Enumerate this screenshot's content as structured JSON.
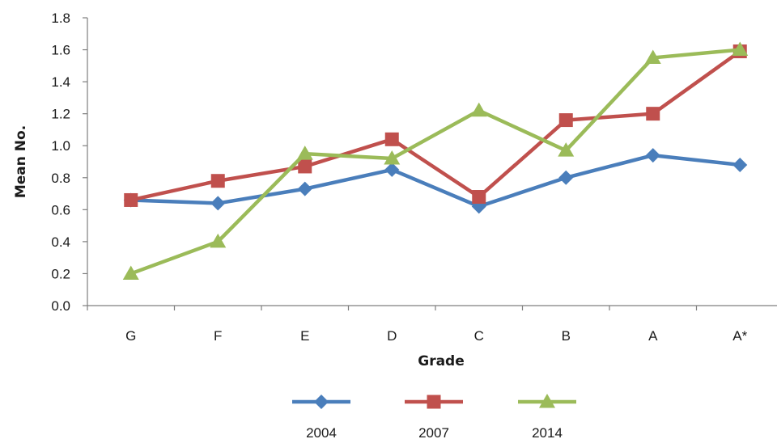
{
  "chart_data": {
    "type": "line",
    "title": "",
    "xlabel": "Grade",
    "ylabel": "Mean No.",
    "categories": [
      "G",
      "F",
      "E",
      "D",
      "C",
      "B",
      "A",
      "A*"
    ],
    "ylim": [
      0,
      1.8
    ],
    "yticks": [
      "0.0",
      "0.2",
      "0.4",
      "0.6",
      "0.8",
      "1.0",
      "1.2",
      "1.4",
      "1.6",
      "1.8"
    ],
    "grid": false,
    "legend_position": "bottom",
    "series": [
      {
        "name": "2004",
        "color": "#4a7ebb",
        "marker": "diamond",
        "values": [
          0.66,
          0.64,
          0.73,
          0.85,
          0.62,
          0.8,
          0.94,
          0.88
        ]
      },
      {
        "name": "2007",
        "color": "#c0504d",
        "marker": "square",
        "values": [
          0.66,
          0.78,
          0.87,
          1.04,
          0.68,
          1.16,
          1.2,
          1.59
        ]
      },
      {
        "name": "2014",
        "color": "#9bbb59",
        "marker": "triangle",
        "values": [
          0.2,
          0.4,
          0.95,
          0.92,
          1.22,
          0.97,
          1.55,
          1.6
        ]
      }
    ]
  }
}
